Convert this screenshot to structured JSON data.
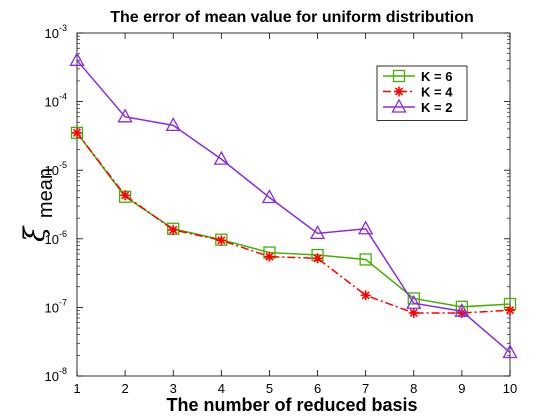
{
  "chart_data": {
    "type": "line",
    "title": "The error of mean value for uniform distribution",
    "xlabel": "The number of reduced basis",
    "ylabel": {
      "symbol": "ξ",
      "subscript": "mean"
    },
    "x": [
      1,
      2,
      3,
      4,
      5,
      6,
      7,
      8,
      9,
      10
    ],
    "xlim": [
      1,
      10
    ],
    "ylim": [
      1e-08,
      0.001
    ],
    "yscale": "log",
    "ytick_labels": [
      {
        "base": "10",
        "exp": "-8",
        "value": 1e-08
      },
      {
        "base": "10",
        "exp": "-7",
        "value": 1e-07
      },
      {
        "base": "10",
        "exp": "-6",
        "value": 1e-06
      },
      {
        "base": "10",
        "exp": "-5",
        "value": 1e-05
      },
      {
        "base": "10",
        "exp": "-4",
        "value": 0.0001
      },
      {
        "base": "10",
        "exp": "-3",
        "value": 0.001
      }
    ],
    "xtick_labels": [
      "1",
      "2",
      "3",
      "4",
      "5",
      "6",
      "7",
      "8",
      "9",
      "10"
    ],
    "grid": false,
    "legend_position": "top-right",
    "series": [
      {
        "name": "K = 6",
        "color": "#46b000",
        "marker": "square",
        "linestyle": "solid",
        "values": [
          3.5e-05,
          4.1e-06,
          1.4e-06,
          9.7e-07,
          6.3e-07,
          5.8e-07,
          5e-07,
          1.35e-07,
          1.02e-07,
          1.12e-07
        ]
      },
      {
        "name": "K = 4",
        "color": "#ff0000",
        "marker": "star",
        "linestyle": "dashdot",
        "values": [
          3.5e-05,
          4.3e-06,
          1.35e-06,
          9.5e-07,
          5.5e-07,
          5.2e-07,
          1.5e-07,
          8.3e-08,
          8.3e-08,
          9.1e-08
        ]
      },
      {
        "name": "K = 2",
        "color": "#8a2be2",
        "marker": "triangle",
        "linestyle": "solid",
        "values": [
          0.0004,
          6e-05,
          4.5e-05,
          1.45e-05,
          4e-06,
          1.2e-06,
          1.4e-06,
          1.15e-07,
          8.8e-08,
          2.2e-08
        ]
      }
    ]
  }
}
